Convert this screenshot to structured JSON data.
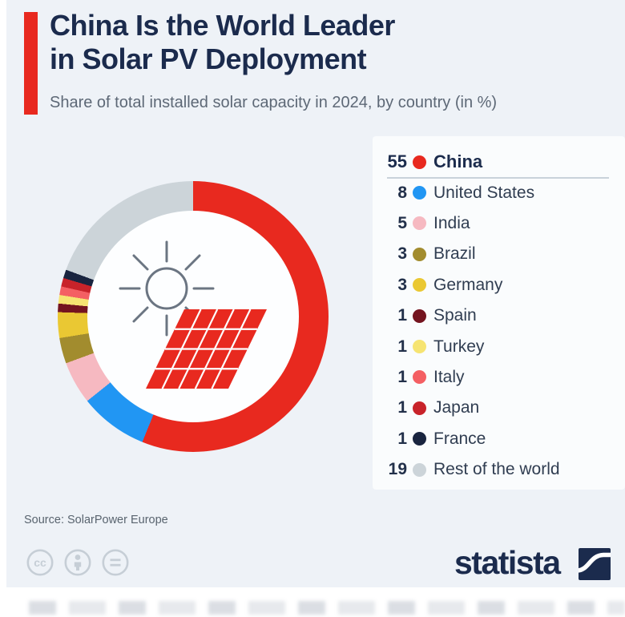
{
  "header": {
    "title": "China Is the World Leader\nin Solar PV Deployment",
    "subtitle": "Share of total installed solar capacity in 2024, by country (in %)"
  },
  "chart_data": {
    "type": "pie",
    "variant": "donut",
    "title": "Share of total installed solar capacity in 2024, by country (in %)",
    "unit": "%",
    "start_angle_deg": 0,
    "direction": "clockwise",
    "legend_position": "right",
    "highlight": "China",
    "center_icon": "sun-and-solar-panel-icon",
    "items": [
      {
        "label": "China",
        "value": 55,
        "color": "#e8291f"
      },
      {
        "label": "United States",
        "value": 8,
        "color": "#2196f3"
      },
      {
        "label": "India",
        "value": 5,
        "color": "#f6b9c1"
      },
      {
        "label": "Brazil",
        "value": 3,
        "color": "#a28c2e"
      },
      {
        "label": "Germany",
        "value": 3,
        "color": "#eac833"
      },
      {
        "label": "Spain",
        "value": 1,
        "color": "#74141f"
      },
      {
        "label": "Turkey",
        "value": 1,
        "color": "#f6e472"
      },
      {
        "label": "Italy",
        "value": 1,
        "color": "#f45f63"
      },
      {
        "label": "Japan",
        "value": 1,
        "color": "#c8232a"
      },
      {
        "label": "France",
        "value": 1,
        "color": "#19243f"
      },
      {
        "label": "Rest of the world",
        "value": 19,
        "color": "#ccd4d9"
      }
    ]
  },
  "footer": {
    "source": "Source: SolarPower Europe",
    "brand": "statista",
    "license_icons": [
      "cc-icon",
      "attribution-icon",
      "equals-icon"
    ]
  },
  "colors": {
    "accent": "#e8291f",
    "navy": "#1b2b4d",
    "card_bg": "#eef2f7",
    "legend_panel_bg": "#fafcfd",
    "subtitle_text": "#5d6876",
    "divider": "#c9d2da"
  }
}
